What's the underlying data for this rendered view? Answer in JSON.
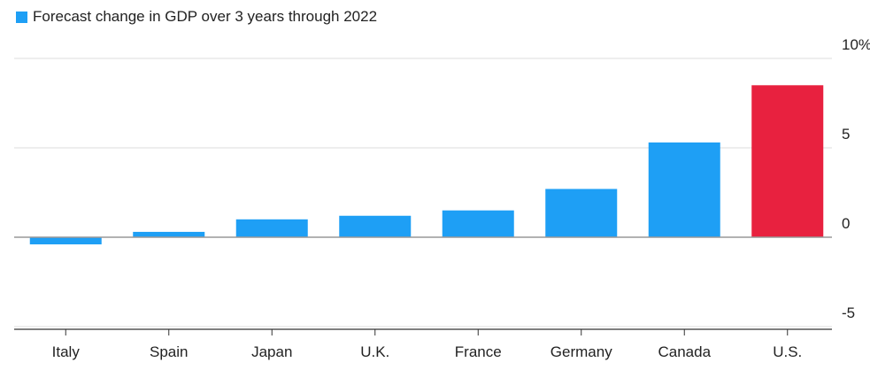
{
  "chart_data": {
    "type": "bar",
    "legend": {
      "label": "Forecast change in GDP over 3 years through 2022",
      "color": "#1e9ff5",
      "placement": "top-left"
    },
    "categories": [
      "Italy",
      "Spain",
      "Japan",
      "U.K.",
      "France",
      "Germany",
      "Canada",
      "U.S."
    ],
    "series": [
      {
        "name": "Forecast change in GDP over 3 years through 2022",
        "values": [
          -0.4,
          0.3,
          1.0,
          1.2,
          1.5,
          2.7,
          5.3,
          8.5
        ]
      }
    ],
    "bar_colors": [
      "#1e9ff5",
      "#1e9ff5",
      "#1e9ff5",
      "#1e9ff5",
      "#1e9ff5",
      "#1e9ff5",
      "#1e9ff5",
      "#e8213f"
    ],
    "ylim": [
      -5,
      10
    ],
    "yticks": [
      -5,
      0,
      5,
      10
    ],
    "ytick_labels": [
      "-5",
      "0",
      "5",
      "10%"
    ],
    "y_axis_position": "right",
    "grid": true,
    "colors": {
      "grid": "#dddddd",
      "zero_line": "#999999",
      "axis": "#333333",
      "text": "#222222"
    }
  }
}
